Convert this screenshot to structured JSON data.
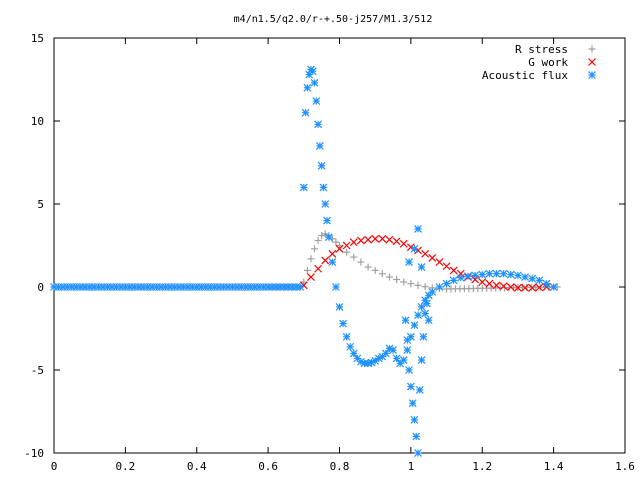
{
  "chart_data": {
    "type": "scatter",
    "title": "m4/n1.5/q2.0/r-+.50-j257/M1.3/512",
    "xlabel": "",
    "ylabel": "",
    "xlim": [
      0,
      1.6
    ],
    "ylim": [
      -10,
      15
    ],
    "x_ticks": [
      0,
      0.2,
      0.4,
      0.6,
      0.8,
      1,
      1.2,
      1.4,
      1.6
    ],
    "y_ticks": [
      -10,
      -5,
      0,
      5,
      10,
      15
    ],
    "grid": false,
    "legend_position": "top-right",
    "series": [
      {
        "name": "R stress",
        "marker": "plus",
        "color": "#a0a0a0",
        "x": [
          0.0,
          0.1,
          0.2,
          0.3,
          0.4,
          0.5,
          0.6,
          0.69,
          0.7,
          0.71,
          0.72,
          0.73,
          0.74,
          0.75,
          0.76,
          0.77,
          0.78,
          0.79,
          0.8,
          0.82,
          0.84,
          0.86,
          0.88,
          0.9,
          0.92,
          0.94,
          0.96,
          0.98,
          1.0,
          1.02,
          1.04,
          1.06,
          1.08,
          1.1,
          1.15,
          1.2,
          1.25,
          1.3,
          1.35,
          1.4,
          1.41
        ],
        "y": [
          0,
          0,
          0,
          0,
          0,
          0,
          0,
          0,
          0.3,
          1.0,
          1.7,
          2.3,
          2.8,
          3.1,
          3.2,
          3.1,
          2.9,
          2.7,
          2.5,
          2.1,
          1.8,
          1.5,
          1.2,
          1.0,
          0.8,
          0.6,
          0.45,
          0.3,
          0.2,
          0.1,
          0.02,
          -0.05,
          -0.1,
          -0.12,
          -0.1,
          -0.08,
          -0.05,
          -0.03,
          -0.01,
          0.0,
          0.0
        ]
      },
      {
        "name": "G work",
        "marker": "cross",
        "color": "#ff0000",
        "x": [
          0.7,
          0.72,
          0.74,
          0.76,
          0.78,
          0.8,
          0.82,
          0.84,
          0.86,
          0.88,
          0.9,
          0.92,
          0.94,
          0.96,
          0.98,
          1.0,
          1.02,
          1.04,
          1.06,
          1.08,
          1.1,
          1.12,
          1.14,
          1.16,
          1.18,
          1.2,
          1.22,
          1.24,
          1.26,
          1.28,
          1.3,
          1.32,
          1.34,
          1.36,
          1.38,
          1.4
        ],
        "y": [
          0.1,
          0.6,
          1.1,
          1.6,
          2.0,
          2.3,
          2.5,
          2.7,
          2.8,
          2.85,
          2.9,
          2.9,
          2.85,
          2.75,
          2.6,
          2.4,
          2.2,
          2.0,
          1.75,
          1.5,
          1.25,
          1.0,
          0.8,
          0.6,
          0.45,
          0.3,
          0.2,
          0.1,
          0.05,
          0.0,
          -0.05,
          -0.05,
          -0.05,
          -0.03,
          0.0,
          0.0
        ]
      },
      {
        "name": "Acoustic flux",
        "marker": "star",
        "color": "#1e90ff",
        "x": [
          0.0,
          0.1,
          0.2,
          0.3,
          0.4,
          0.5,
          0.6,
          0.69,
          0.7,
          0.705,
          0.71,
          0.715,
          0.72,
          0.725,
          0.73,
          0.735,
          0.74,
          0.745,
          0.75,
          0.755,
          0.76,
          0.765,
          0.77,
          0.78,
          0.79,
          0.8,
          0.81,
          0.82,
          0.83,
          0.84,
          0.85,
          0.86,
          0.87,
          0.88,
          0.89,
          0.9,
          0.91,
          0.92,
          0.93,
          0.94,
          0.95,
          0.96,
          0.97,
          0.98,
          0.99,
          1.0,
          1.01,
          1.02,
          1.03,
          1.04,
          1.05,
          1.06,
          1.08,
          1.1,
          1.12,
          1.14,
          1.16,
          1.18,
          1.2,
          1.22,
          1.24,
          1.26,
          1.28,
          1.3,
          1.32,
          1.34,
          1.36,
          1.38,
          1.4,
          0.985,
          0.99,
          0.995,
          1.0,
          1.005,
          1.01,
          1.015,
          1.02,
          1.025,
          1.03,
          1.035,
          1.04,
          1.045,
          1.05,
          0.995,
          1.01,
          1.02,
          1.03
        ],
        "y": [
          0,
          0,
          0,
          0,
          0,
          0,
          0,
          0,
          6.0,
          10.5,
          12.0,
          12.8,
          13.1,
          13.0,
          12.3,
          11.2,
          9.8,
          8.5,
          7.3,
          6.0,
          5.0,
          4.0,
          3.0,
          1.5,
          0.0,
          -1.2,
          -2.2,
          -3.0,
          -3.6,
          -4.0,
          -4.3,
          -4.5,
          -4.6,
          -4.6,
          -4.55,
          -4.45,
          -4.3,
          -4.2,
          -4.0,
          -3.7,
          -3.8,
          -4.3,
          -4.6,
          -4.4,
          -3.8,
          -3.0,
          -2.3,
          -1.7,
          -1.2,
          -0.8,
          -0.5,
          -0.3,
          0.0,
          0.2,
          0.4,
          0.55,
          0.65,
          0.7,
          0.75,
          0.8,
          0.8,
          0.8,
          0.75,
          0.7,
          0.6,
          0.5,
          0.4,
          0.2,
          0.0,
          -2.0,
          -3.2,
          -5.0,
          -6.0,
          -7.0,
          -8.0,
          -9.0,
          -10.0,
          -6.2,
          -4.4,
          -3.0,
          -1.6,
          -1.0,
          -2.0,
          1.5,
          2.3,
          3.5,
          1.2
        ]
      }
    ]
  }
}
